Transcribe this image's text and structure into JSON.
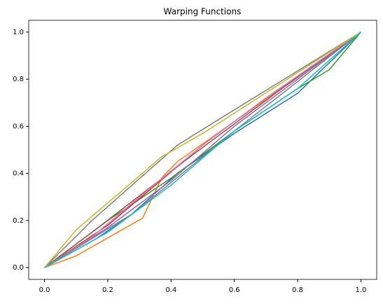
{
  "chart_data": {
    "type": "line",
    "title": "Warping Functions",
    "xlim": [
      -0.05,
      1.05
    ],
    "ylim": [
      -0.05,
      1.05
    ],
    "xticks": [
      {
        "value": 0,
        "label": "0.0"
      },
      0.2,
      0.4,
      0.6,
      0.8,
      {
        "value": 1,
        "label": "1.0"
      }
    ],
    "yticks": [
      {
        "value": 0,
        "label": "0.0"
      },
      0.2,
      0.4,
      0.6,
      0.8,
      {
        "value": 1,
        "label": "1.0"
      }
    ],
    "grid": false,
    "series": [
      {
        "color": "#1f77b4",
        "x": [
          0,
          0.16,
          0.27,
          0.42,
          0.6,
          0.8,
          1
        ],
        "values": [
          0,
          0.12,
          0.22,
          0.4,
          0.57,
          0.74,
          1
        ]
      },
      {
        "color": "#ff7f0e",
        "x": [
          0,
          0.1,
          0.31,
          0.37,
          0.42,
          0.6,
          1
        ],
        "values": [
          0,
          0.05,
          0.21,
          0.38,
          0.45,
          0.62,
          1
        ]
      },
      {
        "color": "#2ca02c",
        "x": [
          0,
          0.1,
          0.2,
          0.4,
          0.6,
          0.8,
          0.9,
          1
        ],
        "values": [
          0,
          0.1,
          0.2,
          0.38,
          0.58,
          0.76,
          0.84,
          1
        ]
      },
      {
        "color": "#d62728",
        "x": [
          0,
          0.2,
          0.5,
          0.7,
          1
        ],
        "values": [
          0,
          0.18,
          0.52,
          0.72,
          1
        ]
      },
      {
        "color": "#9467bd",
        "x": [
          0,
          0.2,
          0.4,
          0.6,
          0.8,
          1
        ],
        "values": [
          0,
          0.17,
          0.37,
          0.6,
          0.8,
          1
        ]
      },
      {
        "color": "#8c564b",
        "x": [
          0,
          0.15,
          0.45,
          0.75,
          1
        ],
        "values": [
          0,
          0.15,
          0.46,
          0.76,
          1
        ]
      },
      {
        "color": "#e377c2",
        "x": [
          0,
          0.15,
          0.3,
          0.5,
          0.7,
          1
        ],
        "values": [
          0,
          0.13,
          0.3,
          0.52,
          0.72,
          1
        ]
      },
      {
        "color": "#7f7f7f",
        "x": [
          0,
          0.15,
          0.42,
          0.6,
          1
        ],
        "values": [
          0,
          0.2,
          0.52,
          0.67,
          1
        ]
      },
      {
        "color": "#7f7f7f",
        "x": [
          0,
          0.28,
          0.6,
          1
        ],
        "values": [
          0,
          0.23,
          0.58,
          1
        ]
      },
      {
        "color": "#bcbd22",
        "x": [
          0,
          0.1,
          0.37,
          0.5,
          1
        ],
        "values": [
          0,
          0.16,
          0.47,
          0.57,
          1
        ]
      },
      {
        "color": "#17becf",
        "x": [
          0,
          0.2,
          0.4,
          0.6,
          0.8,
          0.9,
          1
        ],
        "values": [
          0,
          0.15,
          0.35,
          0.58,
          0.76,
          0.88,
          1
        ]
      }
    ]
  }
}
